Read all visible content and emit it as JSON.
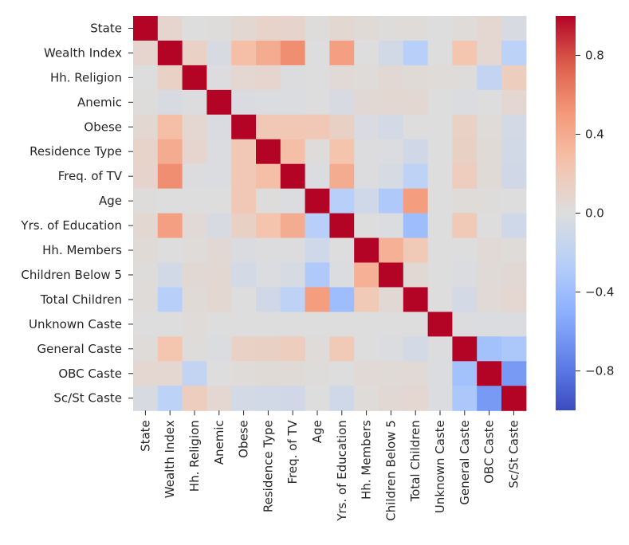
{
  "chart_data": {
    "type": "heatmap",
    "title": "",
    "xlabel": "",
    "ylabel": "",
    "colormap": "coolwarm",
    "vmin": -1.0,
    "vmax": 1.0,
    "colorbar_ticks": [
      0.8,
      0.4,
      0.0,
      -0.4,
      -0.8
    ],
    "colorbar_tick_labels": [
      "0.8",
      "0.4",
      "0.0",
      "−0.4",
      "−0.8"
    ],
    "labels": [
      "State",
      "Wealth Index",
      "Hh. Religion",
      "Anemic",
      "Obese",
      "Residence Type",
      "Freq. of TV",
      "Age",
      "Yrs. of Education",
      "Hh. Members",
      "Children Below 5",
      "Total Children",
      "Unknown Caste",
      "General Caste",
      "OBC Caste",
      "Sc/St Caste"
    ],
    "matrix": [
      [
        1.0,
        0.08,
        0.0,
        0.01,
        0.06,
        0.1,
        0.09,
        0.01,
        0.06,
        0.03,
        0.01,
        0.02,
        0.0,
        0.02,
        0.07,
        -0.04
      ],
      [
        0.08,
        1.0,
        0.12,
        -0.04,
        0.28,
        0.39,
        0.55,
        0.0,
        0.47,
        0.0,
        -0.08,
        -0.25,
        0.0,
        0.24,
        0.07,
        -0.22
      ],
      [
        0.0,
        0.12,
        1.0,
        -0.01,
        0.07,
        0.08,
        -0.01,
        0.0,
        0.04,
        0.02,
        0.05,
        0.03,
        0.02,
        0.01,
        -0.18,
        0.16
      ],
      [
        0.01,
        -0.04,
        -0.01,
        1.0,
        -0.03,
        -0.02,
        -0.02,
        0.0,
        -0.04,
        0.05,
        0.06,
        0.06,
        0.0,
        -0.02,
        0.0,
        0.07
      ],
      [
        0.06,
        0.28,
        0.07,
        -0.03,
        1.0,
        0.21,
        0.21,
        0.21,
        0.13,
        -0.03,
        -0.07,
        0.0,
        0.0,
        0.12,
        0.02,
        -0.07
      ],
      [
        0.1,
        0.39,
        0.08,
        -0.02,
        0.21,
        1.0,
        0.28,
        0.01,
        0.25,
        -0.01,
        -0.02,
        -0.09,
        0.0,
        0.13,
        0.03,
        -0.08
      ],
      [
        0.09,
        0.55,
        -0.01,
        -0.02,
        0.21,
        0.28,
        1.0,
        -0.02,
        0.39,
        -0.01,
        -0.05,
        -0.21,
        0.0,
        0.16,
        0.03,
        -0.09
      ],
      [
        0.01,
        0.0,
        0.0,
        0.0,
        0.21,
        0.01,
        -0.02,
        1.0,
        -0.25,
        -0.1,
        -0.3,
        0.48,
        0.0,
        0.02,
        0.01,
        0.0
      ],
      [
        0.06,
        0.47,
        0.04,
        -0.04,
        0.13,
        0.25,
        0.39,
        -0.25,
        1.0,
        0.0,
        -0.02,
        -0.4,
        0.0,
        0.2,
        0.0,
        -0.1
      ],
      [
        0.03,
        0.0,
        0.02,
        0.05,
        -0.03,
        -0.01,
        -0.01,
        -0.1,
        0.0,
        1.0,
        0.37,
        0.2,
        0.0,
        0.0,
        0.04,
        0.02
      ],
      [
        0.01,
        -0.08,
        0.05,
        0.06,
        -0.07,
        -0.02,
        -0.05,
        -0.3,
        -0.02,
        0.37,
        1.0,
        0.05,
        0.0,
        -0.02,
        0.03,
        0.05
      ],
      [
        0.02,
        -0.25,
        0.03,
        0.06,
        0.0,
        -0.09,
        -0.21,
        0.48,
        -0.4,
        0.2,
        0.05,
        1.0,
        0.0,
        -0.07,
        0.04,
        0.07
      ],
      [
        0.0,
        0.0,
        0.02,
        0.0,
        0.0,
        0.0,
        0.0,
        0.0,
        0.0,
        0.0,
        0.0,
        0.0,
        1.0,
        -0.01,
        -0.02,
        -0.02
      ],
      [
        0.02,
        0.24,
        0.01,
        -0.02,
        0.12,
        0.13,
        0.16,
        0.02,
        0.2,
        0.0,
        -0.02,
        -0.07,
        -0.01,
        1.0,
        -0.37,
        -0.32
      ],
      [
        0.07,
        0.07,
        -0.18,
        0.0,
        0.02,
        0.03,
        0.03,
        0.01,
        0.0,
        0.04,
        0.03,
        0.04,
        -0.02,
        -0.37,
        1.0,
        -0.62
      ],
      [
        -0.04,
        -0.22,
        0.16,
        0.07,
        -0.07,
        -0.08,
        -0.09,
        0.0,
        -0.1,
        0.02,
        0.05,
        0.07,
        -0.02,
        -0.32,
        -0.62,
        1.0
      ]
    ]
  }
}
